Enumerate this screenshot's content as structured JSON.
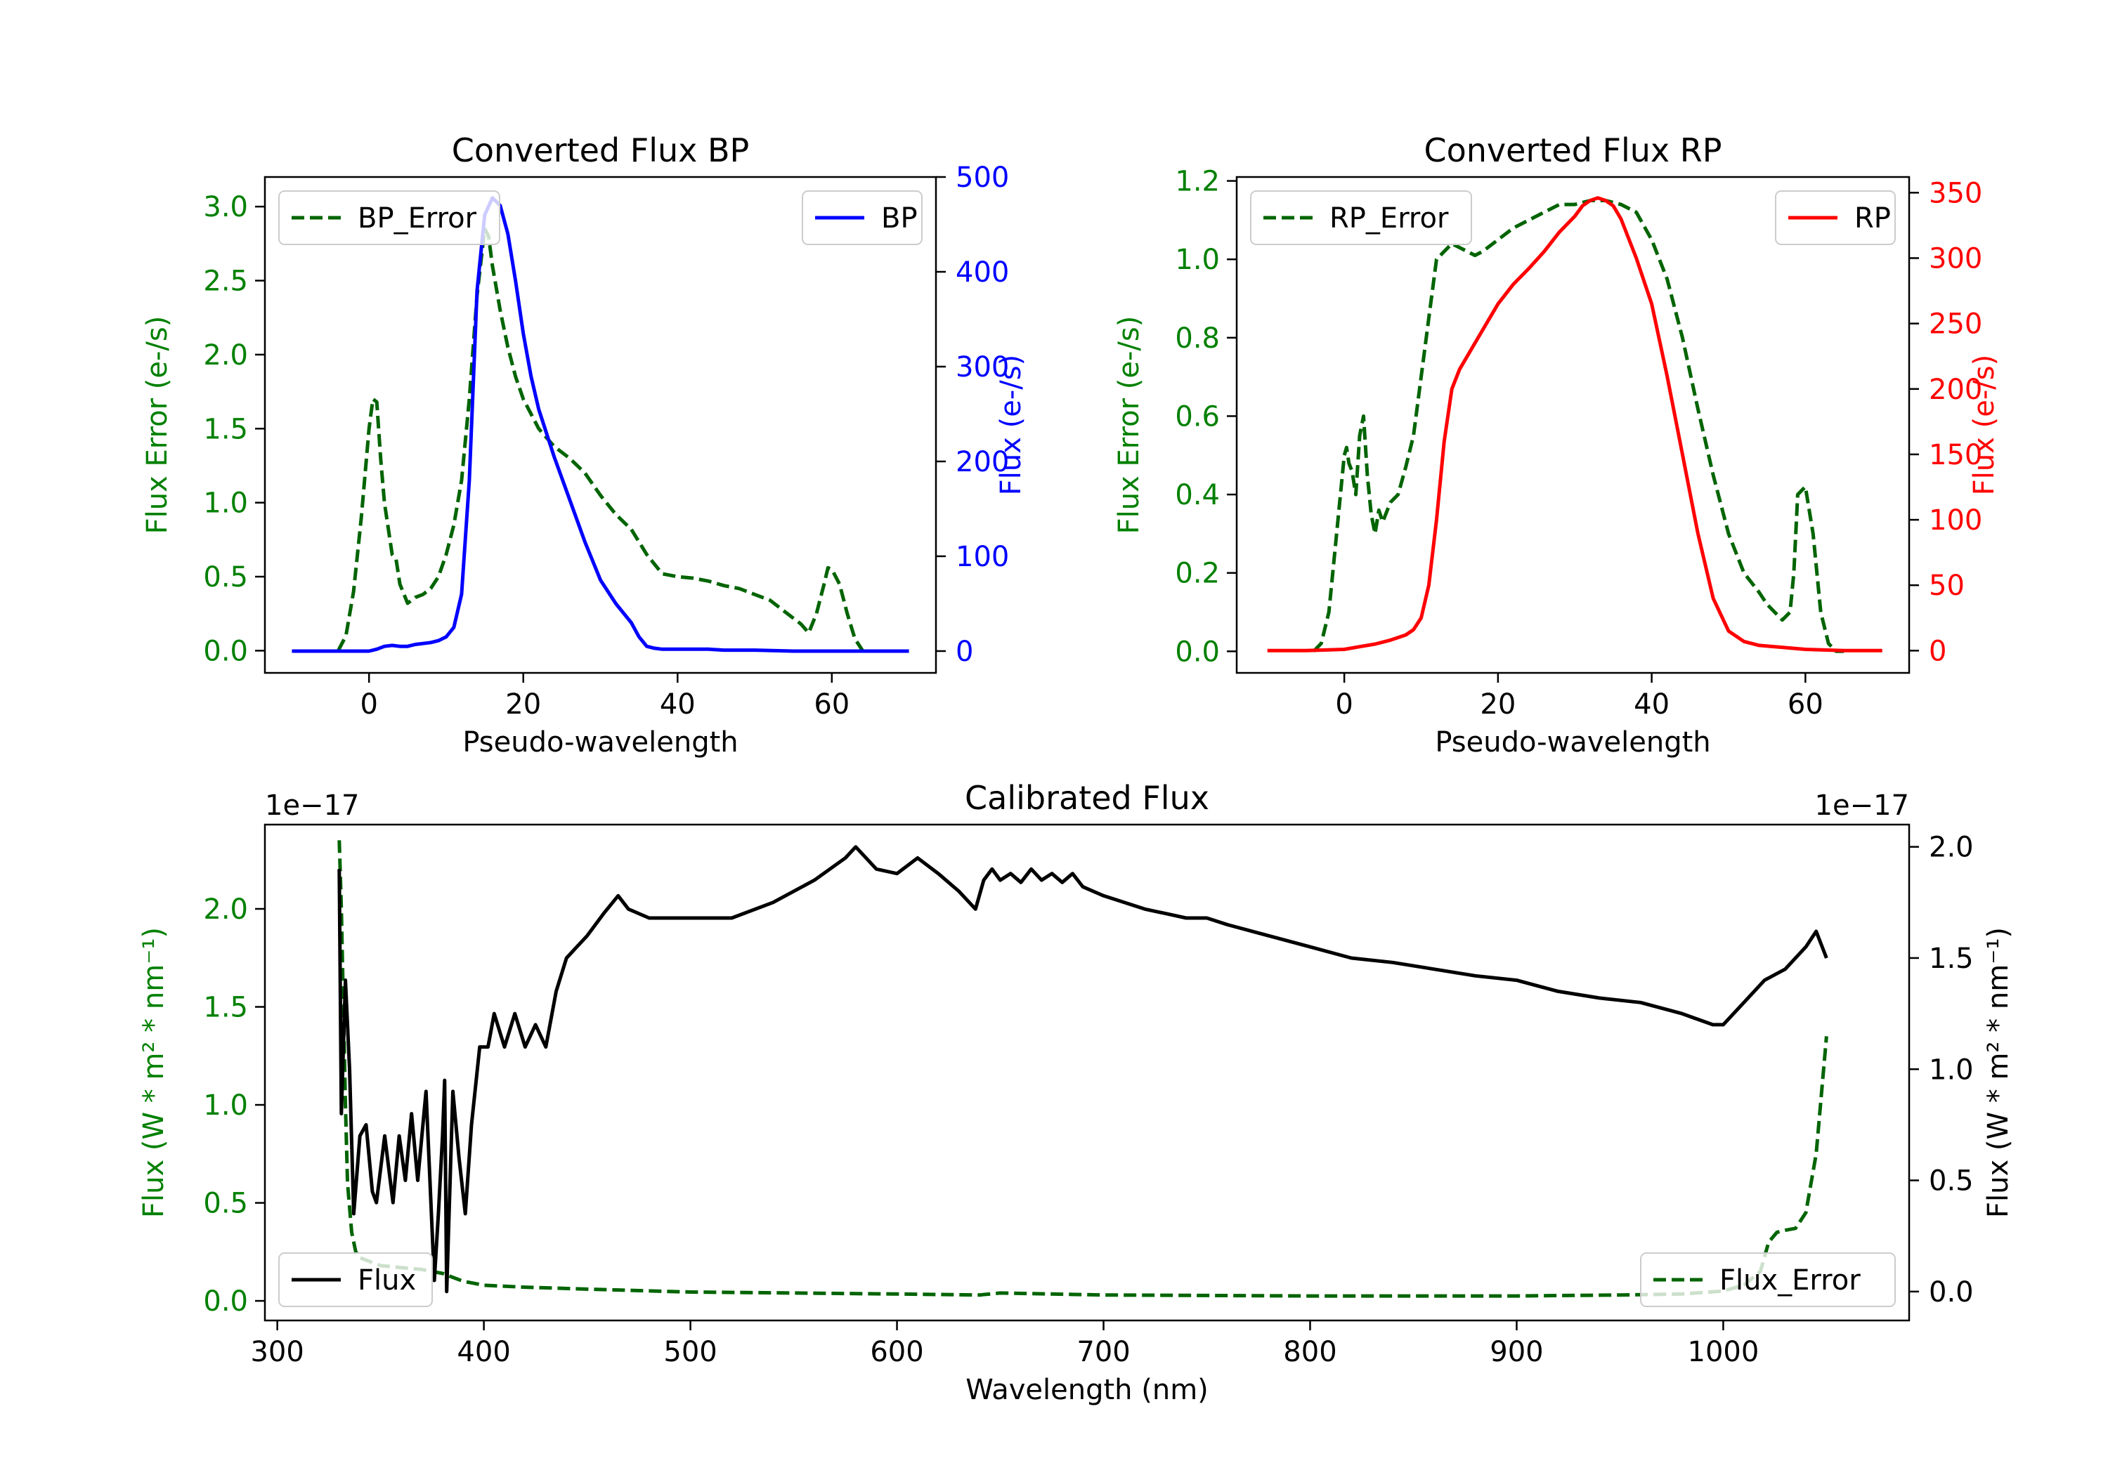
{
  "chart_data": [
    {
      "id": "bp",
      "type": "line",
      "title": "Converted Flux BP",
      "xlabel": "Pseudo-wavelength",
      "ylabel_left": "Flux Error (e-/s)",
      "ylabel_right": "Flux (e-/s)",
      "xlim": [
        -13.5,
        73.5
      ],
      "ylim_left": [
        -0.15,
        3.2
      ],
      "ylim_right": [
        -23,
        500
      ],
      "xticks": [
        0,
        20,
        40,
        60
      ],
      "yticks_left": [
        0.0,
        0.5,
        1.0,
        1.5,
        2.0,
        2.5,
        3.0
      ],
      "yticks_right": [
        0,
        100,
        200,
        300,
        400,
        500
      ],
      "ytick_labels_left": [
        "0.0",
        "0.5",
        "1.0",
        "1.5",
        "2.0",
        "2.5",
        "3.0"
      ],
      "ytick_labels_right": [
        "0",
        "100",
        "200",
        "300",
        "400",
        "500"
      ],
      "left_color": "#008000",
      "right_color": "#0000ff",
      "legend_left": {
        "label": "BP_Error",
        "position": "upper left"
      },
      "legend_right": {
        "label": "BP",
        "position": "upper right"
      },
      "series": [
        {
          "name": "BP_Error",
          "axis": "left",
          "style": "dashed",
          "color": "#006400",
          "x": [
            -4,
            -3,
            -2,
            -1,
            0,
            0.5,
            1,
            1.5,
            2,
            3,
            3.5,
            4,
            5,
            6,
            7,
            8,
            9,
            10,
            11,
            12,
            13,
            14,
            15,
            15.5,
            16,
            17,
            18,
            19,
            20,
            22,
            24,
            26,
            28,
            30,
            32,
            34,
            36,
            38,
            40,
            42,
            44,
            46,
            48,
            50,
            52,
            54,
            56,
            57,
            58,
            59,
            59.5,
            60,
            61,
            62,
            63,
            64
          ],
          "y": [
            0.0,
            0.1,
            0.4,
            0.9,
            1.5,
            1.7,
            1.68,
            1.3,
            1.0,
            0.65,
            0.62,
            0.45,
            0.32,
            0.36,
            0.38,
            0.42,
            0.5,
            0.65,
            0.85,
            1.15,
            1.7,
            2.4,
            2.85,
            2.8,
            2.6,
            2.3,
            2.05,
            1.85,
            1.7,
            1.5,
            1.38,
            1.3,
            1.2,
            1.05,
            0.92,
            0.82,
            0.65,
            0.52,
            0.5,
            0.49,
            0.47,
            0.44,
            0.42,
            0.38,
            0.34,
            0.26,
            0.18,
            0.12,
            0.25,
            0.45,
            0.56,
            0.55,
            0.45,
            0.25,
            0.08,
            0.0
          ]
        },
        {
          "name": "BP",
          "axis": "right",
          "style": "solid",
          "color": "#0000ff",
          "x": [
            -10,
            -6,
            -3,
            0,
            1,
            2,
            3,
            4,
            5,
            6,
            7,
            8,
            9,
            10,
            11,
            12,
            13,
            14,
            15,
            16,
            17,
            18,
            19,
            20,
            21,
            22,
            24,
            26,
            28,
            30,
            32,
            34,
            35,
            36,
            37,
            38,
            40,
            42,
            44,
            46,
            48,
            50,
            55,
            60,
            65,
            70
          ],
          "y": [
            0,
            0,
            0,
            0,
            2,
            5,
            6,
            5,
            5,
            7,
            8,
            9,
            11,
            15,
            25,
            60,
            180,
            380,
            460,
            478,
            470,
            440,
            390,
            335,
            290,
            255,
            205,
            160,
            115,
            75,
            50,
            30,
            15,
            5,
            3,
            2,
            2,
            2,
            2,
            1,
            1,
            1,
            0,
            0,
            0,
            0
          ]
        }
      ]
    },
    {
      "id": "rp",
      "type": "line",
      "title": "Converted Flux RP",
      "xlabel": "Pseudo-wavelength",
      "ylabel_left": "Flux Error (e-/s)",
      "ylabel_right": "Flux (e-/s)",
      "xlim": [
        -14,
        73.5
      ],
      "ylim_left": [
        -0.055,
        1.21
      ],
      "ylim_right": [
        -17,
        362
      ],
      "xticks": [
        0,
        20,
        40,
        60
      ],
      "yticks_left": [
        0.0,
        0.2,
        0.4,
        0.6,
        0.8,
        1.0,
        1.2
      ],
      "yticks_right": [
        0,
        50,
        100,
        150,
        200,
        250,
        300,
        350
      ],
      "ytick_labels_left": [
        "0.0",
        "0.2",
        "0.4",
        "0.6",
        "0.8",
        "1.0",
        "1.2"
      ],
      "ytick_labels_right": [
        "0",
        "50",
        "100",
        "150",
        "200",
        "250",
        "300",
        "350"
      ],
      "left_color": "#008000",
      "right_color": "#ff0000",
      "legend_left": {
        "label": "RP_Error",
        "position": "upper left"
      },
      "legend_right": {
        "label": "RP",
        "position": "upper right"
      },
      "series": [
        {
          "name": "RP_Error",
          "axis": "left",
          "style": "dashed",
          "color": "#006400",
          "x": [
            -4,
            -3,
            -2,
            -1,
            0,
            0.3,
            0.6,
            1,
            1.5,
            2,
            2.5,
            3,
            3.5,
            4,
            4.5,
            5,
            6,
            7,
            8,
            9,
            10,
            11,
            12,
            13,
            14,
            15,
            16,
            17,
            18,
            20,
            22,
            24,
            26,
            28,
            30,
            32,
            34,
            36,
            38,
            40,
            42,
            44,
            46,
            48,
            50,
            52,
            54,
            55,
            56,
            57,
            58,
            58.5,
            59,
            60,
            61,
            62,
            63,
            64,
            65
          ],
          "y": [
            0.0,
            0.02,
            0.1,
            0.3,
            0.5,
            0.52,
            0.48,
            0.46,
            0.4,
            0.55,
            0.6,
            0.45,
            0.35,
            0.3,
            0.36,
            0.33,
            0.38,
            0.4,
            0.47,
            0.55,
            0.7,
            0.85,
            1.0,
            1.02,
            1.04,
            1.03,
            1.02,
            1.01,
            1.02,
            1.05,
            1.08,
            1.1,
            1.12,
            1.14,
            1.14,
            1.15,
            1.15,
            1.14,
            1.12,
            1.05,
            0.95,
            0.8,
            0.62,
            0.45,
            0.3,
            0.2,
            0.15,
            0.12,
            0.1,
            0.08,
            0.1,
            0.2,
            0.4,
            0.42,
            0.3,
            0.1,
            0.02,
            0.0,
            0.0
          ]
        },
        {
          "name": "RP",
          "axis": "right",
          "style": "solid",
          "color": "#ff0000",
          "x": [
            -10,
            -5,
            0,
            2,
            4,
            6,
            8,
            9,
            10,
            11,
            12,
            13,
            14,
            15,
            16,
            18,
            20,
            22,
            24,
            26,
            28,
            30,
            31,
            32,
            33,
            34,
            35,
            36,
            38,
            40,
            42,
            44,
            46,
            48,
            50,
            52,
            54,
            56,
            58,
            60,
            65,
            70
          ],
          "y": [
            0,
            0,
            1,
            3,
            5,
            8,
            12,
            16,
            25,
            50,
            100,
            160,
            200,
            215,
            225,
            245,
            265,
            280,
            292,
            305,
            320,
            332,
            340,
            344,
            346,
            344,
            340,
            330,
            300,
            265,
            210,
            150,
            90,
            40,
            15,
            7,
            4,
            3,
            2,
            1,
            0,
            0
          ]
        }
      ]
    },
    {
      "id": "calibrated",
      "type": "line",
      "title": "Calibrated Flux",
      "xlabel": "Wavelength (nm)",
      "ylabel_left": "Flux (W * m² * nm⁻¹)",
      "ylabel_right": "Flux (W * m² * nm⁻¹)",
      "scale_left": "1e−17",
      "scale_right": "1e−17",
      "xlim": [
        294,
        1090
      ],
      "ylim_left": [
        -0.1,
        2.43
      ],
      "ylim_right": [
        -0.13,
        2.1
      ],
      "xticks": [
        300,
        400,
        500,
        600,
        700,
        800,
        900,
        1000
      ],
      "yticks_left": [
        0.0,
        0.5,
        1.0,
        1.5,
        2.0
      ],
      "yticks_right": [
        0.0,
        0.5,
        1.0,
        1.5,
        2.0
      ],
      "ytick_labels_left": [
        "0.0",
        "0.5",
        "1.0",
        "1.5",
        "2.0"
      ],
      "ytick_labels_right": [
        "0.0",
        "0.5",
        "1.0",
        "1.5",
        "2.0"
      ],
      "left_color": "#008000",
      "right_color": "#000000",
      "legend_left": {
        "label": "Flux",
        "position": "lower left"
      },
      "legend_right": {
        "label": "Flux_Error",
        "position": "lower right"
      },
      "series": [
        {
          "name": "Flux_Error",
          "axis": "left",
          "style": "dashed",
          "color": "#006400",
          "x": [
            330,
            331,
            332,
            333,
            334,
            336,
            338,
            340,
            345,
            350,
            360,
            370,
            380,
            390,
            400,
            420,
            450,
            500,
            550,
            600,
            640,
            650,
            700,
            800,
            900,
            950,
            980,
            1000,
            1010,
            1018,
            1022,
            1026,
            1030,
            1035,
            1040,
            1045,
            1050
          ],
          "y": [
            2.35,
            2.0,
            1.5,
            1.0,
            0.6,
            0.35,
            0.25,
            0.22,
            0.2,
            0.18,
            0.17,
            0.16,
            0.14,
            0.1,
            0.08,
            0.07,
            0.06,
            0.045,
            0.04,
            0.035,
            0.03,
            0.04,
            0.03,
            0.025,
            0.025,
            0.03,
            0.035,
            0.05,
            0.08,
            0.15,
            0.3,
            0.35,
            0.36,
            0.37,
            0.45,
            0.75,
            1.35
          ]
        },
        {
          "name": "Flux",
          "axis": "right",
          "style": "solid",
          "color": "#000000",
          "x": [
            330,
            331,
            333,
            335,
            337,
            340,
            343,
            346,
            348,
            352,
            356,
            359,
            362,
            365,
            368,
            372,
            376,
            378,
            380,
            381,
            382,
            383,
            385,
            388,
            391,
            394,
            398,
            402,
            405,
            410,
            415,
            420,
            425,
            430,
            435,
            440,
            445,
            450,
            458,
            465,
            470,
            480,
            500,
            520,
            540,
            560,
            575,
            580,
            590,
            600,
            610,
            620,
            630,
            638,
            642,
            646,
            650,
            655,
            660,
            665,
            670,
            675,
            680,
            685,
            690,
            700,
            710,
            720,
            730,
            740,
            750,
            760,
            780,
            800,
            820,
            840,
            860,
            880,
            900,
            920,
            940,
            960,
            980,
            995,
            1000,
            1010,
            1020,
            1030,
            1040,
            1045,
            1050
          ],
          "y": [
            1.9,
            0.8,
            1.4,
            1.0,
            0.35,
            0.7,
            0.75,
            0.45,
            0.4,
            0.7,
            0.4,
            0.7,
            0.5,
            0.8,
            0.5,
            0.9,
            0.05,
            0.35,
            0.7,
            0.95,
            0.0,
            0.3,
            0.9,
            0.6,
            0.35,
            0.75,
            1.1,
            1.1,
            1.25,
            1.1,
            1.25,
            1.1,
            1.2,
            1.1,
            1.35,
            1.5,
            1.55,
            1.6,
            1.7,
            1.78,
            1.72,
            1.68,
            1.68,
            1.68,
            1.75,
            1.85,
            1.95,
            2.0,
            1.9,
            1.88,
            1.95,
            1.88,
            1.8,
            1.72,
            1.85,
            1.9,
            1.85,
            1.88,
            1.84,
            1.9,
            1.85,
            1.88,
            1.84,
            1.88,
            1.82,
            1.78,
            1.75,
            1.72,
            1.7,
            1.68,
            1.68,
            1.65,
            1.6,
            1.55,
            1.5,
            1.48,
            1.45,
            1.42,
            1.4,
            1.35,
            1.32,
            1.3,
            1.25,
            1.2,
            1.2,
            1.3,
            1.4,
            1.45,
            1.55,
            1.62,
            1.5
          ]
        }
      ]
    }
  ]
}
